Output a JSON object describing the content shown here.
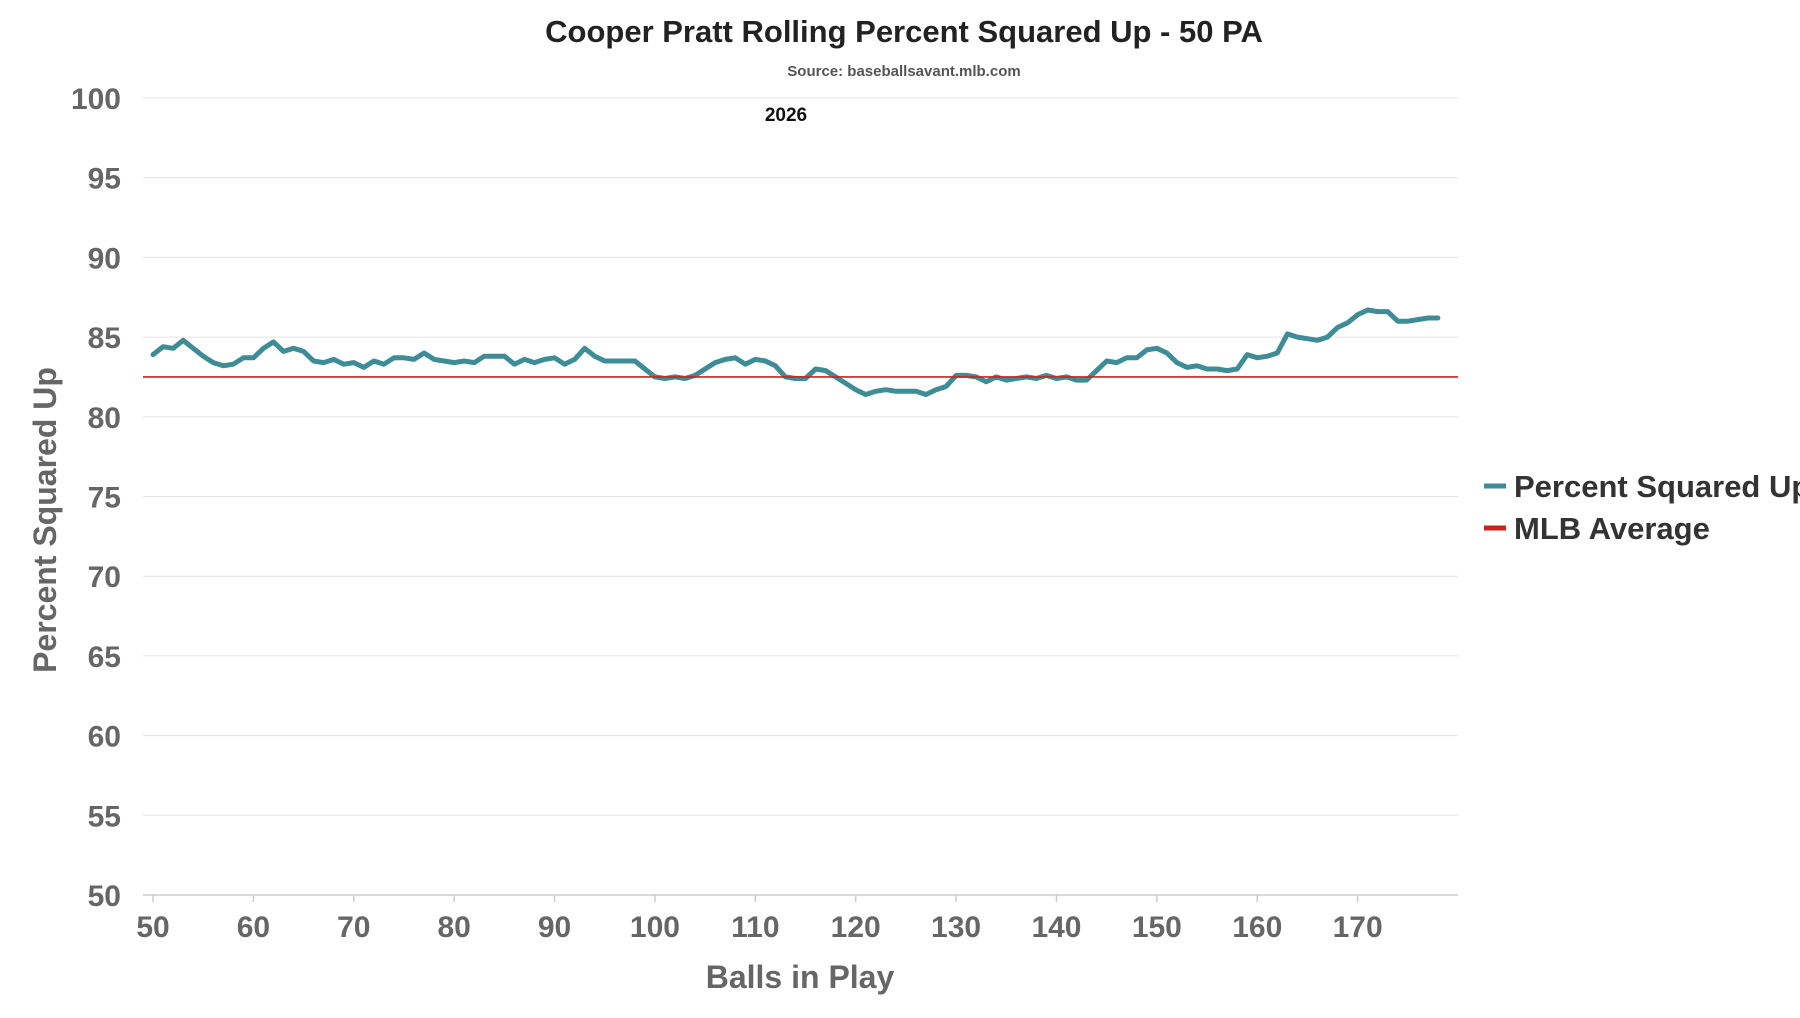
{
  "chart_data": {
    "type": "line",
    "title": "Cooper Pratt Rolling Percent Squared Up - 50 PA",
    "subtitle": "Source: baseballsavant.mlb.com",
    "annotation": "2026",
    "xlabel": "Balls in Play",
    "ylabel": "Percent Squared Up",
    "xlim": [
      49,
      180
    ],
    "ylim": [
      50,
      100
    ],
    "xticks": [
      50,
      60,
      70,
      80,
      90,
      100,
      110,
      120,
      130,
      140,
      150,
      160,
      170
    ],
    "yticks": [
      50,
      55,
      60,
      65,
      70,
      75,
      80,
      85,
      90,
      95,
      100
    ],
    "grid": true,
    "legend_position": "right",
    "series": [
      {
        "name": "Percent Squared Up",
        "color": "#3d8c96",
        "x_start": 50,
        "x_step": 1,
        "values": [
          83.9,
          84.4,
          84.3,
          84.8,
          84.3,
          83.8,
          83.4,
          83.2,
          83.3,
          83.7,
          83.7,
          84.3,
          84.7,
          84.1,
          84.3,
          84.1,
          83.5,
          83.4,
          83.6,
          83.3,
          83.4,
          83.1,
          83.5,
          83.3,
          83.7,
          83.7,
          83.6,
          84.0,
          83.6,
          83.5,
          83.4,
          83.5,
          83.4,
          83.8,
          83.8,
          83.8,
          83.3,
          83.6,
          83.4,
          83.6,
          83.7,
          83.3,
          83.6,
          84.3,
          83.8,
          83.5,
          83.5,
          83.5,
          83.5,
          83.0,
          82.5,
          82.4,
          82.5,
          82.4,
          82.6,
          83.0,
          83.4,
          83.6,
          83.7,
          83.3,
          83.6,
          83.5,
          83.2,
          82.5,
          82.4,
          82.4,
          83.0,
          82.9,
          82.5,
          82.1,
          81.7,
          81.4,
          81.6,
          81.7,
          81.6,
          81.6,
          81.6,
          81.4,
          81.7,
          81.9,
          82.6,
          82.6,
          82.5,
          82.2,
          82.5,
          82.3,
          82.4,
          82.5,
          82.4,
          82.6,
          82.4,
          82.5,
          82.3,
          82.3,
          82.9,
          83.5,
          83.4,
          83.7,
          83.7,
          84.2,
          84.3,
          84.0,
          83.4,
          83.1,
          83.2,
          83.0,
          83.0,
          82.9,
          83.0,
          83.9,
          83.7,
          83.8,
          84.0,
          85.2,
          85.0,
          84.9,
          84.8,
          85.0,
          85.6,
          85.9,
          86.4,
          86.7,
          86.6,
          86.6,
          86.0,
          86.0,
          86.1,
          86.2,
          86.2
        ]
      },
      {
        "name": "MLB Average",
        "color": "#cc2222",
        "constant": 82.5
      }
    ]
  }
}
